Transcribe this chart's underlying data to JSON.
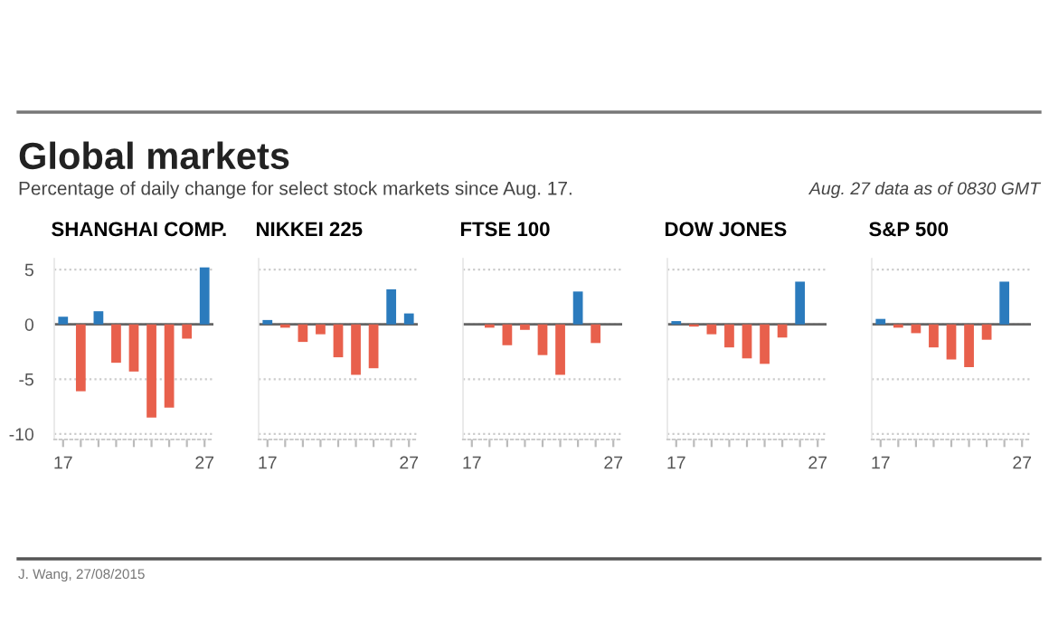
{
  "chart_data": [
    {
      "type": "bar",
      "title": "SHANGHAI COMP.",
      "categories": [
        "17",
        null,
        null,
        null,
        null,
        null,
        null,
        null,
        "27"
      ],
      "values": [
        0.7,
        -6.1,
        1.2,
        -3.5,
        -4.3,
        -8.5,
        -7.6,
        -1.3,
        5.2
      ],
      "colors": [
        "#2b7bbd",
        "#e8604c",
        "#2b7bbd",
        "#e8604c",
        "#e8604c",
        "#e8604c",
        "#e8604c",
        "#e8604c",
        "#2b7bbd"
      ],
      "ylim": [
        -10.5,
        6
      ],
      "yticks": [
        5,
        0,
        -5,
        -10
      ],
      "grid": "y",
      "ref_lines": [
        {
          "axis": "y",
          "value": 0,
          "color": "#666666"
        }
      ],
      "annotations": [
        "Global markets",
        "Percentage of daily change for select stock markets since Aug. 17.",
        "Aug. 27 data as of 0830 GMT",
        "J. Wang, 27/08/2015"
      ]
    },
    {
      "type": "bar",
      "title": "NIKKEI 225",
      "categories": [
        "17",
        null,
        null,
        null,
        null,
        null,
        null,
        null,
        "27"
      ],
      "values": [
        0.4,
        -0.3,
        -1.6,
        -0.9,
        -3.0,
        -4.6,
        -4.0,
        3.2,
        1.0
      ],
      "colors": [
        "#2b7bbd",
        "#e8604c",
        "#e8604c",
        "#e8604c",
        "#e8604c",
        "#e8604c",
        "#e8604c",
        "#2b7bbd",
        "#2b7bbd"
      ],
      "ylim": [
        -10.5,
        6
      ],
      "yticks": [
        5,
        0,
        -5,
        -10
      ],
      "grid": "y",
      "tick_labels": "x",
      "ref_lines": [
        {
          "axis": "y",
          "value": 0,
          "color": "#666666"
        }
      ]
    },
    {
      "type": "bar",
      "title": "FTSE 100",
      "categories": [
        "17",
        null,
        null,
        null,
        null,
        null,
        null,
        null,
        "27"
      ],
      "values": [
        0.0,
        -0.3,
        -1.9,
        -0.5,
        -2.8,
        -4.6,
        3.0,
        -1.7,
        null
      ],
      "colors": [
        "#2b7bbd",
        "#e8604c",
        "#e8604c",
        "#e8604c",
        "#e8604c",
        "#e8604c",
        "#2b7bbd",
        "#e8604c",
        "#2b7bbd"
      ],
      "ylim": [
        -10.5,
        6
      ],
      "yticks": [
        5,
        0,
        -5,
        -10
      ],
      "grid": "y",
      "tick_labels": "x",
      "ref_lines": [
        {
          "axis": "y",
          "value": 0,
          "color": "#666666"
        }
      ]
    },
    {
      "type": "bar",
      "title": "DOW JONES",
      "categories": [
        "17",
        null,
        null,
        null,
        null,
        null,
        null,
        null,
        "27"
      ],
      "values": [
        0.3,
        -0.2,
        -0.9,
        -2.1,
        -3.1,
        -3.6,
        -1.2,
        3.9,
        null
      ],
      "colors": [
        "#2b7bbd",
        "#e8604c",
        "#e8604c",
        "#e8604c",
        "#e8604c",
        "#e8604c",
        "#e8604c",
        "#2b7bbd",
        "#2b7bbd"
      ],
      "ylim": [
        -10.5,
        6
      ],
      "yticks": [
        5,
        0,
        -5,
        -10
      ],
      "grid": "y",
      "tick_labels": "x",
      "ref_lines": [
        {
          "axis": "y",
          "value": 0,
          "color": "#666666"
        }
      ]
    },
    {
      "type": "bar",
      "title": "S&P 500",
      "categories": [
        "17",
        null,
        null,
        null,
        null,
        null,
        null,
        null,
        "27"
      ],
      "values": [
        0.5,
        -0.3,
        -0.8,
        -2.1,
        -3.2,
        -3.9,
        -1.4,
        3.9,
        null
      ],
      "colors": [
        "#2b7bbd",
        "#e8604c",
        "#e8604c",
        "#e8604c",
        "#e8604c",
        "#e8604c",
        "#e8604c",
        "#2b7bbd",
        "#2b7bbd"
      ],
      "ylim": [
        -10.5,
        6
      ],
      "yticks": [
        5,
        0,
        -5,
        -10
      ],
      "grid": "y",
      "tick_labels": "x",
      "ref_lines": [
        {
          "axis": "y",
          "value": 0,
          "color": "#666666"
        }
      ]
    }
  ]
}
